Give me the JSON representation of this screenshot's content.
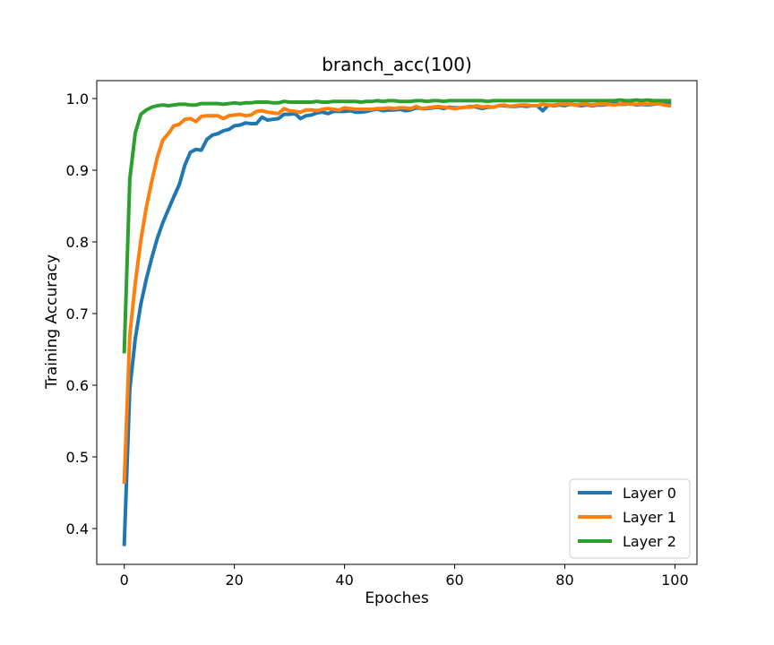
{
  "chart_data": {
    "type": "line",
    "title": "branch_acc(100)",
    "xlabel": "Epoches",
    "ylabel": "Training Accuracy",
    "xlim": [
      -5,
      104
    ],
    "ylim": [
      0.35,
      1.025
    ],
    "xticks": [
      0,
      20,
      40,
      60,
      80,
      100
    ],
    "yticks": [
      0.4,
      0.5,
      0.6,
      0.7,
      0.8,
      0.9,
      1.0
    ],
    "xtick_labels": [
      "0",
      "20",
      "40",
      "60",
      "80",
      "100"
    ],
    "ytick_labels": [
      "0.4",
      "0.5",
      "0.6",
      "0.7",
      "0.8",
      "0.9",
      "1.0"
    ],
    "grid": false,
    "legend_position": "lower-right",
    "x": [
      0,
      1,
      2,
      3,
      4,
      5,
      6,
      7,
      8,
      9,
      10,
      11,
      12,
      13,
      14,
      15,
      16,
      17,
      18,
      19,
      20,
      21,
      22,
      23,
      24,
      25,
      26,
      27,
      28,
      29,
      30,
      31,
      32,
      33,
      34,
      35,
      36,
      37,
      38,
      39,
      40,
      41,
      42,
      43,
      44,
      45,
      46,
      47,
      48,
      49,
      50,
      51,
      52,
      53,
      54,
      55,
      56,
      57,
      58,
      59,
      60,
      61,
      62,
      63,
      64,
      65,
      66,
      67,
      68,
      69,
      70,
      71,
      72,
      73,
      74,
      75,
      76,
      77,
      78,
      79,
      80,
      81,
      82,
      83,
      84,
      85,
      86,
      87,
      88,
      89,
      90,
      91,
      92,
      93,
      94,
      95,
      96,
      97,
      98,
      99
    ],
    "series": [
      {
        "name": "Layer 0",
        "color": "#1f77b4",
        "values": [
          0.378,
          0.595,
          0.665,
          0.713,
          0.748,
          0.778,
          0.805,
          0.827,
          0.845,
          0.863,
          0.88,
          0.907,
          0.925,
          0.929,
          0.928,
          0.943,
          0.949,
          0.951,
          0.955,
          0.957,
          0.962,
          0.963,
          0.966,
          0.965,
          0.965,
          0.974,
          0.97,
          0.971,
          0.972,
          0.978,
          0.978,
          0.979,
          0.972,
          0.976,
          0.977,
          0.98,
          0.981,
          0.979,
          0.982,
          0.982,
          0.982,
          0.983,
          0.981,
          0.981,
          0.982,
          0.984,
          0.985,
          0.983,
          0.984,
          0.984,
          0.985,
          0.983,
          0.984,
          0.987,
          0.986,
          0.986,
          0.987,
          0.988,
          0.986,
          0.988,
          0.987,
          0.987,
          0.988,
          0.989,
          0.988,
          0.986,
          0.988,
          0.988,
          0.99,
          0.99,
          0.989,
          0.989,
          0.99,
          0.989,
          0.99,
          0.99,
          0.983,
          0.991,
          0.99,
          0.991,
          0.99,
          0.992,
          0.991,
          0.99,
          0.991,
          0.99,
          0.991,
          0.991,
          0.992,
          0.993,
          0.992,
          0.992,
          0.993,
          0.991,
          0.992,
          0.991,
          0.992,
          0.993,
          0.992,
          0.993
        ]
      },
      {
        "name": "Layer 1",
        "color": "#ff7f0e",
        "values": [
          0.465,
          0.67,
          0.742,
          0.802,
          0.848,
          0.885,
          0.918,
          0.942,
          0.951,
          0.962,
          0.964,
          0.971,
          0.972,
          0.968,
          0.975,
          0.976,
          0.976,
          0.976,
          0.972,
          0.976,
          0.977,
          0.978,
          0.976,
          0.977,
          0.982,
          0.983,
          0.981,
          0.98,
          0.979,
          0.986,
          0.983,
          0.982,
          0.981,
          0.984,
          0.984,
          0.983,
          0.985,
          0.986,
          0.985,
          0.984,
          0.987,
          0.986,
          0.985,
          0.985,
          0.985,
          0.985,
          0.986,
          0.986,
          0.987,
          0.986,
          0.987,
          0.987,
          0.986,
          0.989,
          0.986,
          0.987,
          0.988,
          0.989,
          0.988,
          0.987,
          0.986,
          0.987,
          0.988,
          0.988,
          0.99,
          0.988,
          0.989,
          0.988,
          0.99,
          0.991,
          0.989,
          0.99,
          0.991,
          0.991,
          0.99,
          0.99,
          0.992,
          0.991,
          0.991,
          0.992,
          0.992,
          0.992,
          0.991,
          0.992,
          0.992,
          0.991,
          0.992,
          0.992,
          0.992,
          0.991,
          0.992,
          0.993,
          0.992,
          0.992,
          0.993,
          0.992,
          0.993,
          0.993,
          0.991,
          0.99
        ]
      },
      {
        "name": "Layer 2",
        "color": "#2ca02c",
        "values": [
          0.647,
          0.888,
          0.952,
          0.978,
          0.984,
          0.988,
          0.99,
          0.991,
          0.99,
          0.991,
          0.992,
          0.992,
          0.991,
          0.991,
          0.993,
          0.993,
          0.993,
          0.993,
          0.992,
          0.993,
          0.994,
          0.993,
          0.994,
          0.994,
          0.995,
          0.995,
          0.995,
          0.994,
          0.994,
          0.996,
          0.995,
          0.995,
          0.995,
          0.995,
          0.995,
          0.996,
          0.995,
          0.995,
          0.996,
          0.996,
          0.996,
          0.996,
          0.996,
          0.995,
          0.996,
          0.996,
          0.997,
          0.996,
          0.997,
          0.997,
          0.996,
          0.996,
          0.996,
          0.997,
          0.997,
          0.996,
          0.997,
          0.997,
          0.996,
          0.997,
          0.997,
          0.997,
          0.997,
          0.997,
          0.997,
          0.997,
          0.996,
          0.997,
          0.997,
          0.997,
          0.997,
          0.997,
          0.997,
          0.997,
          0.997,
          0.997,
          0.997,
          0.997,
          0.997,
          0.997,
          0.997,
          0.997,
          0.997,
          0.997,
          0.997,
          0.997,
          0.997,
          0.997,
          0.997,
          0.997,
          0.998,
          0.997,
          0.997,
          0.998,
          0.997,
          0.998,
          0.997,
          0.997,
          0.997,
          0.997
        ]
      }
    ]
  }
}
